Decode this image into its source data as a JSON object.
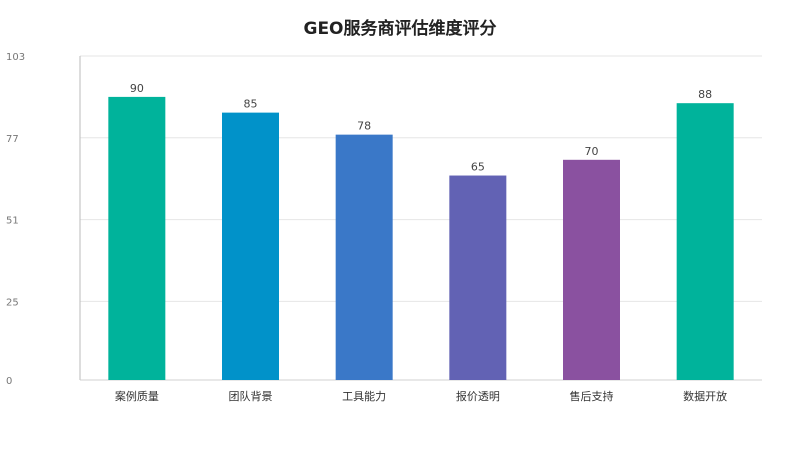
{
  "chart_data": {
    "type": "bar",
    "title": "GEO服务商评估维度评分",
    "xlabel": "",
    "ylabel": "",
    "categories": [
      "案例质量",
      "团队背景",
      "工具能力",
      "报价透明",
      "售后支持",
      "数据开放"
    ],
    "values": [
      90,
      85,
      78,
      65,
      70,
      88
    ],
    "bar_colors": [
      "#00b39b",
      "#0192c9",
      "#3a78c8",
      "#6262b4",
      "#8a51a0",
      "#00b39b"
    ],
    "ylim": [
      0,
      103
    ],
    "yticks": [
      0,
      25,
      51,
      77,
      103
    ],
    "grid": true,
    "legend": "none"
  }
}
